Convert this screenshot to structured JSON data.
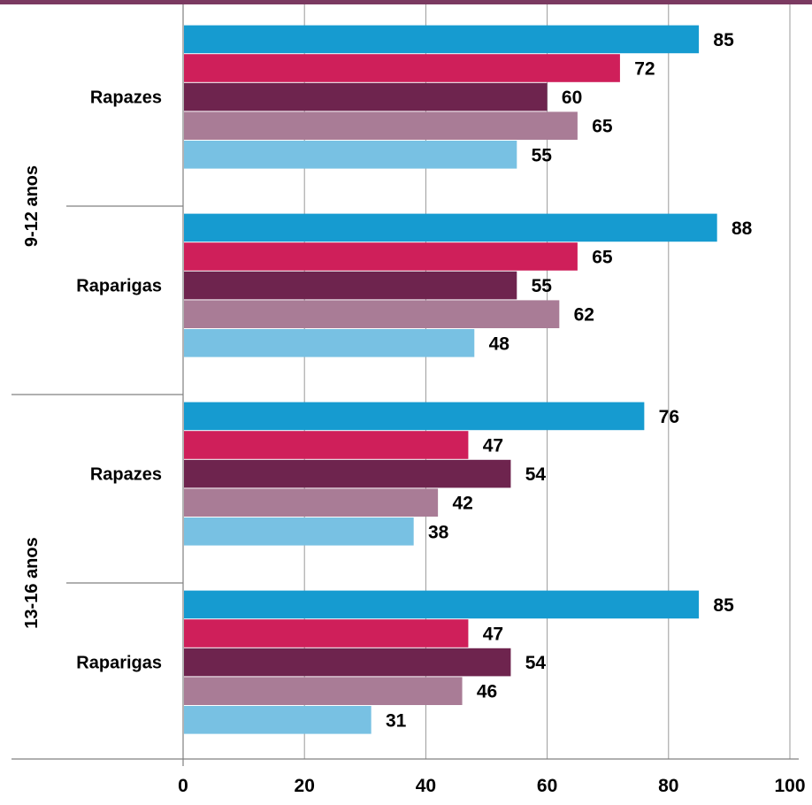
{
  "chart_data": {
    "type": "bar",
    "orientation": "horizontal",
    "title": "",
    "xlabel": "",
    "ylabel": "",
    "xlim": [
      0,
      100
    ],
    "x_ticks": [
      "0",
      "20",
      "40",
      "60",
      "80",
      "100"
    ],
    "grid": true,
    "legend": "none",
    "groups": [
      {
        "label": "9-12 anos",
        "categories": [
          "Rapazes",
          "Raparigas"
        ]
      },
      {
        "label": "13-16 anos",
        "categories": [
          "Rapazes",
          "Raparigas"
        ]
      }
    ],
    "categories": [
      "Rapazes",
      "Raparigas",
      "Rapazes",
      "Raparigas"
    ],
    "series": [
      {
        "color": "#169BD0",
        "values": [
          85,
          88,
          76,
          85
        ]
      },
      {
        "color": "#CF1F5A",
        "values": [
          72,
          65,
          47,
          47
        ]
      },
      {
        "color": "#6E244E",
        "values": [
          60,
          55,
          54,
          54
        ]
      },
      {
        "color": "#A97C96",
        "values": [
          65,
          62,
          42,
          46
        ]
      },
      {
        "color": "#78C1E3",
        "values": [
          55,
          48,
          38,
          31
        ]
      }
    ]
  },
  "theme": {
    "top_bar_color": "#7B3A61",
    "grid_color": "#9a9a9a",
    "axis_color": "#808080"
  }
}
